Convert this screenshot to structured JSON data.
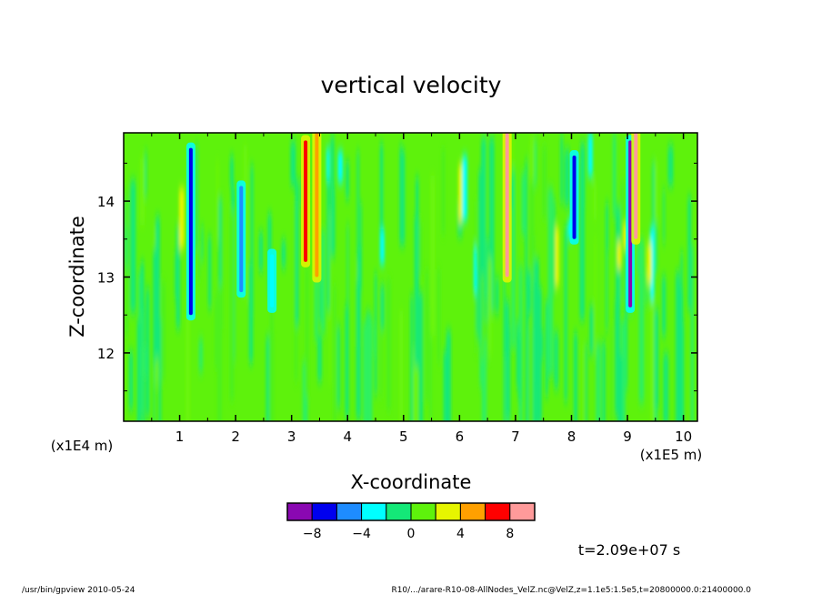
{
  "chart_data": {
    "type": "heatmap",
    "title": "vertical velocity",
    "xlabel": "X-coordinate",
    "ylabel": "Z-coordinate",
    "x_units": "(x1E5 m)",
    "y_units": "(x1E4 m)",
    "xlim": [
      0,
      10.25
    ],
    "ylim": [
      11.1,
      14.9
    ],
    "x_ticks": [
      "1",
      "2",
      "3",
      "4",
      "5",
      "6",
      "7",
      "8",
      "9",
      "10"
    ],
    "y_ticks": [
      "12",
      "13",
      "14"
    ],
    "grid": false,
    "colorbar": {
      "levels": [
        -10,
        -8,
        -6,
        -4,
        -2,
        0,
        2,
        4,
        6,
        8,
        10
      ],
      "colors": [
        "#8a08b2",
        "#0000ee",
        "#1e8cff",
        "#00ffff",
        "#14e878",
        "#5ef20c",
        "#e6f500",
        "#ffa000",
        "#ff0000",
        "#ff9a9a"
      ],
      "tick_labels": [
        "-8",
        "-4",
        "0",
        "4",
        "8"
      ]
    },
    "background_color": "#5ef20c",
    "features": [
      {
        "x": 1.2,
        "z_top": 14.7,
        "z_bottom": 12.5,
        "value": -8
      },
      {
        "x": 2.1,
        "z_top": 14.2,
        "z_bottom": 12.8,
        "value": -6
      },
      {
        "x": 2.65,
        "z_top": 13.3,
        "z_bottom": 12.6,
        "value": -4
      },
      {
        "x": 3.25,
        "z_top": 14.8,
        "z_bottom": 13.2,
        "value": 6
      },
      {
        "x": 3.45,
        "z_top": 14.9,
        "z_bottom": 13.0,
        "value": 4
      },
      {
        "x": 6.85,
        "z_top": 14.9,
        "z_bottom": 13.0,
        "value": 8
      },
      {
        "x": 8.05,
        "z_top": 14.6,
        "z_bottom": 13.5,
        "value": -8
      },
      {
        "x": 9.05,
        "z_top": 14.8,
        "z_bottom": 12.6,
        "value": -10
      },
      {
        "x": 9.15,
        "z_top": 14.9,
        "z_bottom": 13.5,
        "value": 10
      }
    ]
  },
  "annotations": {
    "time": "t=2.09e+07 s",
    "footer_left": "/usr/bin/gpview  2010-05-24",
    "footer_right": "R10/.../arare-R10-08-AllNodes_VelZ.nc@VelZ,z=1.1e5:1.5e5,t=20800000.0:21400000.0"
  }
}
